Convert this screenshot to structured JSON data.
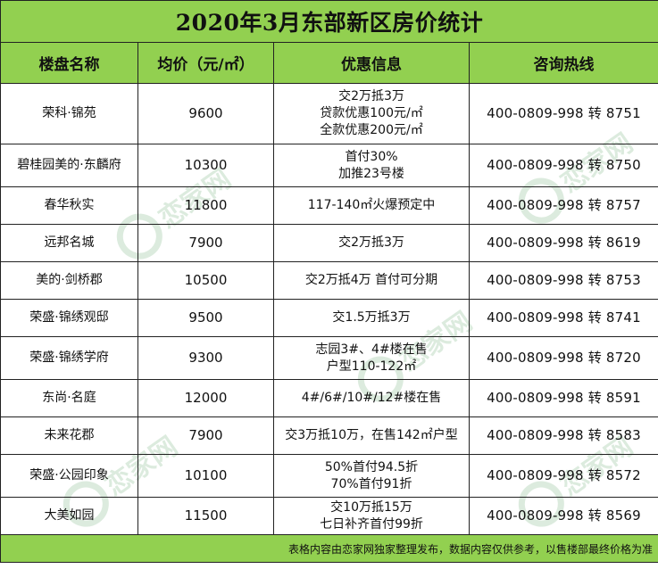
{
  "title": "2020年3月东部新区房价统计",
  "headers": [
    "楼盘名称",
    "均价（元/㎡）",
    "优惠信息",
    "咨询热线"
  ],
  "rows": [
    {
      "name": "荣科·锦苑",
      "price": "9600",
      "promo": [
        "交2万抵3万",
        "贷款优惠100元/㎡",
        "全款优惠200元/㎡"
      ],
      "phone": "400-0809-998 转 8751"
    },
    {
      "name": "碧桂园美的·东麟府",
      "price": "10300",
      "promo": [
        "首付30%",
        "加推23号楼"
      ],
      "phone": "400-0809-998 转 8750"
    },
    {
      "name": "春华秋实",
      "price": "11800",
      "promo": [
        "117-140㎡火爆预定中"
      ],
      "phone": "400-0809-998 转 8757"
    },
    {
      "name": "远邦名城",
      "price": "7900",
      "promo": [
        "交2万抵3万"
      ],
      "phone": "400-0809-998 转 8619"
    },
    {
      "name": "美的·剑桥郡",
      "price": "10500",
      "promo": [
        "交2万抵4万  首付可分期"
      ],
      "phone": "400-0809-998 转 8753"
    },
    {
      "name": "荣盛·锦绣观邸",
      "price": "9500",
      "promo": [
        "交1.5万抵3万"
      ],
      "phone": "400-0809-998 转 8741"
    },
    {
      "name": "荣盛·锦绣学府",
      "price": "9300",
      "promo": [
        "志园3#、4#楼在售",
        "户型110-122㎡"
      ],
      "phone": "400-0809-998 转 8720"
    },
    {
      "name": "东尚·名庭",
      "price": "12000",
      "promo": [
        "4#/6#/10#/12#楼在售"
      ],
      "phone": "400-0809-998 转 8591"
    },
    {
      "name": "未来花郡",
      "price": "7900",
      "promo": [
        "交3万抵10万，在售142㎡户型"
      ],
      "phone": "400-0809-998 转 8583"
    },
    {
      "name": "荣盛·公园印象",
      "price": "10100",
      "promo": [
        "50%首付94.5折",
        "70%首付91折"
      ],
      "phone": "400-0809-998 转 8572"
    },
    {
      "name": "大美如园",
      "price": "11500",
      "promo": [
        "交10万抵15万",
        "七日补齐首付99折"
      ],
      "phone": "400-0809-998 转 8569"
    }
  ],
  "footer": "表格内容由恋家网独家整理发布，数据内容仅供参考，以售楼部最终价格为准",
  "colors": {
    "header_bg": "#92d050",
    "watermark": "#2e8b3a"
  },
  "watermark_text": "恋家网"
}
